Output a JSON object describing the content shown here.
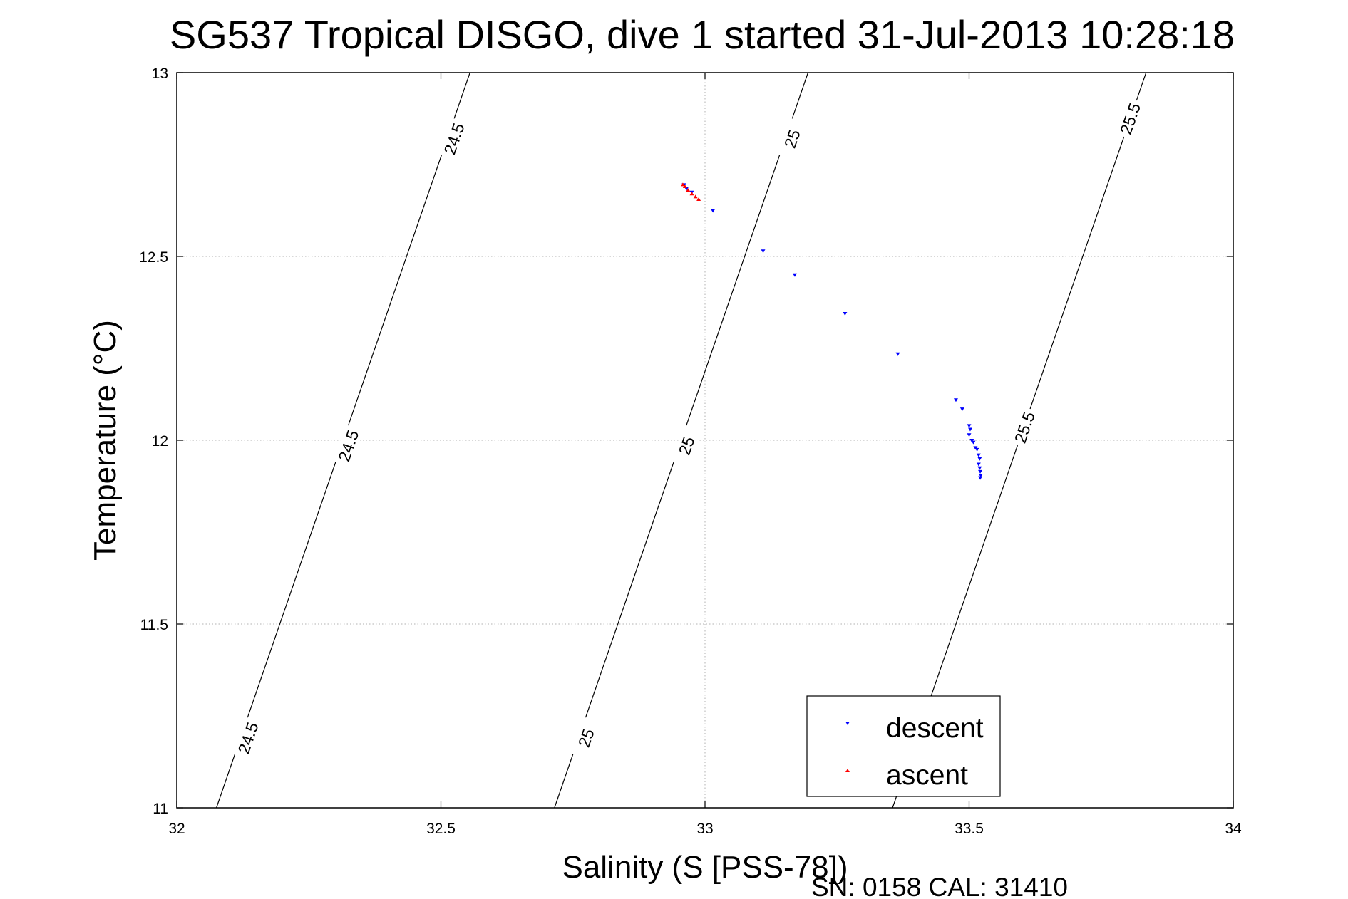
{
  "chart_data": {
    "type": "scatter",
    "title": "SG537 Tropical DISGO, dive 1 started 31-Jul-2013 10:28:18",
    "xlabel": "Salinity (S [PSS-78])",
    "ylabel": "Temperature (°C)",
    "xlim": [
      32,
      34
    ],
    "ylim": [
      11,
      13
    ],
    "x_ticks": [
      32,
      32.5,
      33,
      33.5,
      34
    ],
    "x_tick_labels": [
      "32",
      "32.5",
      "33",
      "33.5",
      "34"
    ],
    "y_ticks": [
      11,
      11.5,
      12,
      12.5,
      13
    ],
    "y_tick_labels": [
      "11",
      "11.5",
      "12",
      "12.5",
      "13"
    ],
    "grid": true,
    "legend_position": "bottom-right",
    "series": [
      {
        "name": "descent",
        "color": "#0000ff",
        "marker": "triangle-down",
        "points": [
          [
            32.96,
            12.695
          ],
          [
            32.965,
            12.685
          ],
          [
            32.975,
            12.675
          ],
          [
            33.015,
            12.625
          ],
          [
            33.11,
            12.515
          ],
          [
            33.17,
            12.45
          ],
          [
            33.265,
            12.345
          ],
          [
            33.365,
            12.235
          ],
          [
            33.475,
            12.11
          ],
          [
            33.487,
            12.085
          ],
          [
            33.5,
            12.04
          ],
          [
            33.502,
            12.03
          ],
          [
            33.5,
            12.015
          ],
          [
            33.505,
            12.0
          ],
          [
            33.508,
            11.995
          ],
          [
            33.512,
            11.98
          ],
          [
            33.515,
            11.975
          ],
          [
            33.518,
            11.96
          ],
          [
            33.52,
            11.95
          ],
          [
            33.518,
            11.935
          ],
          [
            33.52,
            11.925
          ],
          [
            33.521,
            11.915
          ],
          [
            33.522,
            11.905
          ],
          [
            33.521,
            11.898
          ]
        ]
      },
      {
        "name": "ascent",
        "color": "#ff0000",
        "marker": "triangle-up",
        "points": [
          [
            32.958,
            12.695
          ],
          [
            32.962,
            12.69
          ],
          [
            32.968,
            12.68
          ],
          [
            32.975,
            12.67
          ],
          [
            32.982,
            12.662
          ],
          [
            32.988,
            12.655
          ]
        ]
      }
    ],
    "contours": [
      {
        "level": "24.5",
        "color": "#000000",
        "line": [
          [
            32.075,
            11.0
          ],
          [
            32.555,
            13.0
          ]
        ],
        "label_positions": [
          [
            32.135,
            11.19
          ],
          [
            32.325,
            11.985
          ],
          [
            32.525,
            12.82
          ]
        ]
      },
      {
        "level": "25",
        "color": "#000000",
        "line": [
          [
            32.715,
            11.0
          ],
          [
            33.195,
            13.0
          ]
        ],
        "label_positions": [
          [
            32.775,
            11.19
          ],
          [
            32.965,
            11.985
          ],
          [
            33.165,
            12.82
          ]
        ]
      },
      {
        "level": "25.5",
        "color": "#000000",
        "line": [
          [
            33.355,
            11.0
          ],
          [
            33.835,
            13.0
          ]
        ],
        "label_positions": [
          [
            33.605,
            12.035
          ],
          [
            33.805,
            12.875
          ]
        ]
      }
    ]
  },
  "footer": {
    "serial_label": "SN: 0158  CAL: 31410"
  }
}
